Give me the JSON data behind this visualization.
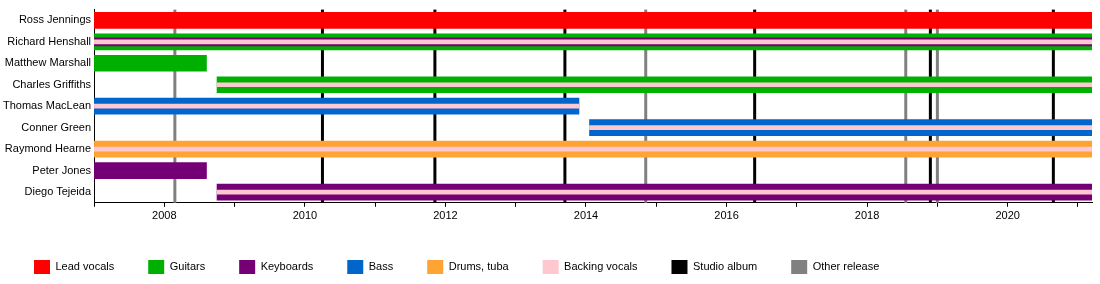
{
  "chart_data": {
    "type": "bar",
    "orientation": "horizontal",
    "grid": false,
    "legend": "bottom",
    "categories": [
      "Ross Jennings",
      "Richard Henshall",
      "Matthew Marshall",
      "Charles Griffiths",
      "Thomas MacLean",
      "Conner Green",
      "Raymond Hearne",
      "Peter Jones",
      "Diego Tejeida"
    ],
    "series": [
      {
        "name": "Lead vocals",
        "color": "#ff0000",
        "base": [
          2007,
          null,
          null,
          null,
          null,
          null,
          null,
          null,
          null
        ],
        "values": [
          14.2,
          null,
          null,
          null,
          null,
          null,
          null,
          null,
          null
        ]
      },
      {
        "name": "Guitars",
        "color": "#00b000",
        "base": [
          null,
          2007,
          2007,
          2008.75,
          null,
          null,
          null,
          null,
          null
        ],
        "values": [
          null,
          14.2,
          1.6,
          12.45,
          null,
          null,
          null,
          null,
          null
        ]
      },
      {
        "name": "Keyboards",
        "color": "#750075",
        "base": [
          null,
          2007,
          null,
          null,
          null,
          null,
          null,
          2007,
          2008.75
        ],
        "values": [
          null,
          14.2,
          null,
          null,
          null,
          null,
          null,
          1.6,
          12.45
        ]
      },
      {
        "name": "Bass",
        "color": "#0066cc",
        "base": [
          null,
          null,
          null,
          null,
          2007,
          2014.05,
          null,
          null,
          null
        ],
        "values": [
          null,
          null,
          null,
          null,
          6.9,
          7.15,
          null,
          null,
          null
        ]
      },
      {
        "name": "Drums, tuba",
        "color": "#ffa333",
        "base": [
          null,
          null,
          null,
          null,
          null,
          null,
          2007,
          null,
          null
        ],
        "values": [
          null,
          null,
          null,
          null,
          null,
          null,
          14.2,
          null,
          null
        ]
      },
      {
        "name": "Backing vocals",
        "color": "#ffc8d0",
        "base": [
          null,
          2007,
          null,
          2008.75,
          2007,
          2014.05,
          2007,
          null,
          2008.75
        ],
        "values": [
          null,
          14.2,
          null,
          12.45,
          6.9,
          7.15,
          14.2,
          null,
          12.45
        ]
      }
    ],
    "xlim": [
      2007,
      2021.2
    ],
    "xticks": [
      {
        "value": 2007,
        "label": null
      },
      2008,
      {
        "value": 2009,
        "label": null
      },
      2010,
      {
        "value": 2011,
        "label": null
      },
      2012,
      {
        "value": 2013,
        "label": null
      },
      2014,
      {
        "value": 2015,
        "label": null
      },
      2016,
      {
        "value": 2017,
        "label": null
      },
      2018,
      {
        "value": 2019,
        "label": null
      },
      2020,
      {
        "value": 2021,
        "label": null
      }
    ],
    "ref_lines": [
      {
        "axis": "x",
        "value": 2010.25,
        "label": "Studio album",
        "color": "#000000"
      },
      {
        "axis": "x",
        "value": 2011.85,
        "label": null,
        "color": "#000000"
      },
      {
        "axis": "x",
        "value": 2013.7,
        "label": null,
        "color": "#000000"
      },
      {
        "axis": "x",
        "value": 2016.4,
        "label": null,
        "color": "#000000"
      },
      {
        "axis": "x",
        "value": 2018.9,
        "label": null,
        "color": "#000000"
      },
      {
        "axis": "x",
        "value": 2020.65,
        "label": null,
        "color": "#000000"
      },
      {
        "axis": "x",
        "value": 2008.15,
        "label": "Other release",
        "color": "#808080"
      },
      {
        "axis": "x",
        "value": 2014.85,
        "label": null,
        "color": "#808080"
      },
      {
        "axis": "x",
        "value": 2018.55,
        "label": null,
        "color": "#808080"
      },
      {
        "axis": "x",
        "value": 2019.0,
        "label": null,
        "color": "#808080"
      }
    ]
  }
}
